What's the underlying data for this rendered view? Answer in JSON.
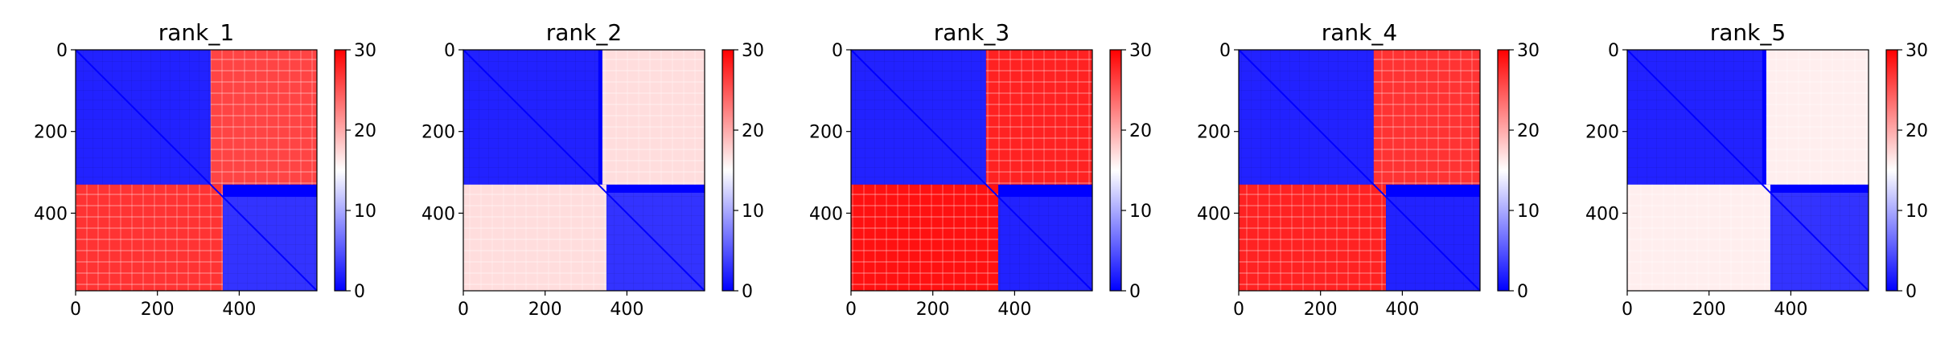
{
  "chart_data": [
    {
      "type": "heatmap",
      "title": "rank_1",
      "xticks": [
        0,
        200,
        400
      ],
      "yticks": [
        0,
        200,
        400
      ],
      "xlim": [
        0,
        590
      ],
      "ylim": [
        590,
        0
      ],
      "colorbar": {
        "range": [
          0,
          30
        ],
        "ticks": [
          0,
          10,
          20,
          30
        ],
        "colormap": "bwr"
      },
      "blocks": [
        {
          "rows": [
            0,
            330
          ],
          "cols": [
            0,
            330
          ],
          "value": 2
        },
        {
          "rows": [
            0,
            330
          ],
          "cols": [
            330,
            590
          ],
          "value": 26
        },
        {
          "rows": [
            330,
            590
          ],
          "cols": [
            0,
            360
          ],
          "value": 27
        },
        {
          "rows": [
            360,
            590
          ],
          "cols": [
            360,
            590
          ],
          "value": 3
        }
      ],
      "diagonal_value": 0
    },
    {
      "type": "heatmap",
      "title": "rank_2",
      "xticks": [
        0,
        200,
        400
      ],
      "yticks": [
        0,
        200,
        400
      ],
      "xlim": [
        0,
        590
      ],
      "ylim": [
        590,
        0
      ],
      "colorbar": {
        "range": [
          0,
          30
        ],
        "ticks": [
          0,
          10,
          20,
          30
        ],
        "colormap": "bwr"
      },
      "blocks": [
        {
          "rows": [
            0,
            330
          ],
          "cols": [
            0,
            330
          ],
          "value": 2
        },
        {
          "rows": [
            0,
            330
          ],
          "cols": [
            340,
            590
          ],
          "value": 17
        },
        {
          "rows": [
            330,
            590
          ],
          "cols": [
            0,
            350
          ],
          "value": 17
        },
        {
          "rows": [
            350,
            590
          ],
          "cols": [
            350,
            590
          ],
          "value": 3
        }
      ],
      "diagonal_value": 0
    },
    {
      "type": "heatmap",
      "title": "rank_3",
      "xticks": [
        0,
        200,
        400
      ],
      "yticks": [
        0,
        200,
        400
      ],
      "xlim": [
        0,
        590
      ],
      "ylim": [
        590,
        0
      ],
      "colorbar": {
        "range": [
          0,
          30
        ],
        "ticks": [
          0,
          10,
          20,
          30
        ],
        "colormap": "bwr"
      },
      "blocks": [
        {
          "rows": [
            0,
            330
          ],
          "cols": [
            0,
            330
          ],
          "value": 2
        },
        {
          "rows": [
            0,
            330
          ],
          "cols": [
            330,
            590
          ],
          "value": 28
        },
        {
          "rows": [
            330,
            590
          ],
          "cols": [
            0,
            360
          ],
          "value": 29
        },
        {
          "rows": [
            360,
            590
          ],
          "cols": [
            360,
            590
          ],
          "value": 2
        }
      ],
      "diagonal_value": 0
    },
    {
      "type": "heatmap",
      "title": "rank_4",
      "xticks": [
        0,
        200,
        400
      ],
      "yticks": [
        0,
        200,
        400
      ],
      "xlim": [
        0,
        590
      ],
      "ylim": [
        590,
        0
      ],
      "colorbar": {
        "range": [
          0,
          30
        ],
        "ticks": [
          0,
          10,
          20,
          30
        ],
        "colormap": "bwr"
      },
      "blocks": [
        {
          "rows": [
            0,
            330
          ],
          "cols": [
            0,
            330
          ],
          "value": 2
        },
        {
          "rows": [
            0,
            330
          ],
          "cols": [
            330,
            590
          ],
          "value": 27
        },
        {
          "rows": [
            330,
            590
          ],
          "cols": [
            0,
            360
          ],
          "value": 28
        },
        {
          "rows": [
            360,
            590
          ],
          "cols": [
            360,
            590
          ],
          "value": 2
        }
      ],
      "diagonal_value": 0
    },
    {
      "type": "heatmap",
      "title": "rank_5",
      "xticks": [
        0,
        200,
        400
      ],
      "yticks": [
        0,
        200,
        400
      ],
      "xlim": [
        0,
        590
      ],
      "ylim": [
        590,
        0
      ],
      "colorbar": {
        "range": [
          0,
          30
        ],
        "ticks": [
          0,
          10,
          20,
          30
        ],
        "colormap": "bwr"
      },
      "blocks": [
        {
          "rows": [
            0,
            330
          ],
          "cols": [
            0,
            330
          ],
          "value": 2
        },
        {
          "rows": [
            0,
            330
          ],
          "cols": [
            340,
            590
          ],
          "value": 16
        },
        {
          "rows": [
            330,
            590
          ],
          "cols": [
            0,
            350
          ],
          "value": 16
        },
        {
          "rows": [
            350,
            590
          ],
          "cols": [
            350,
            590
          ],
          "value": 3
        }
      ],
      "diagonal_value": 0
    }
  ]
}
